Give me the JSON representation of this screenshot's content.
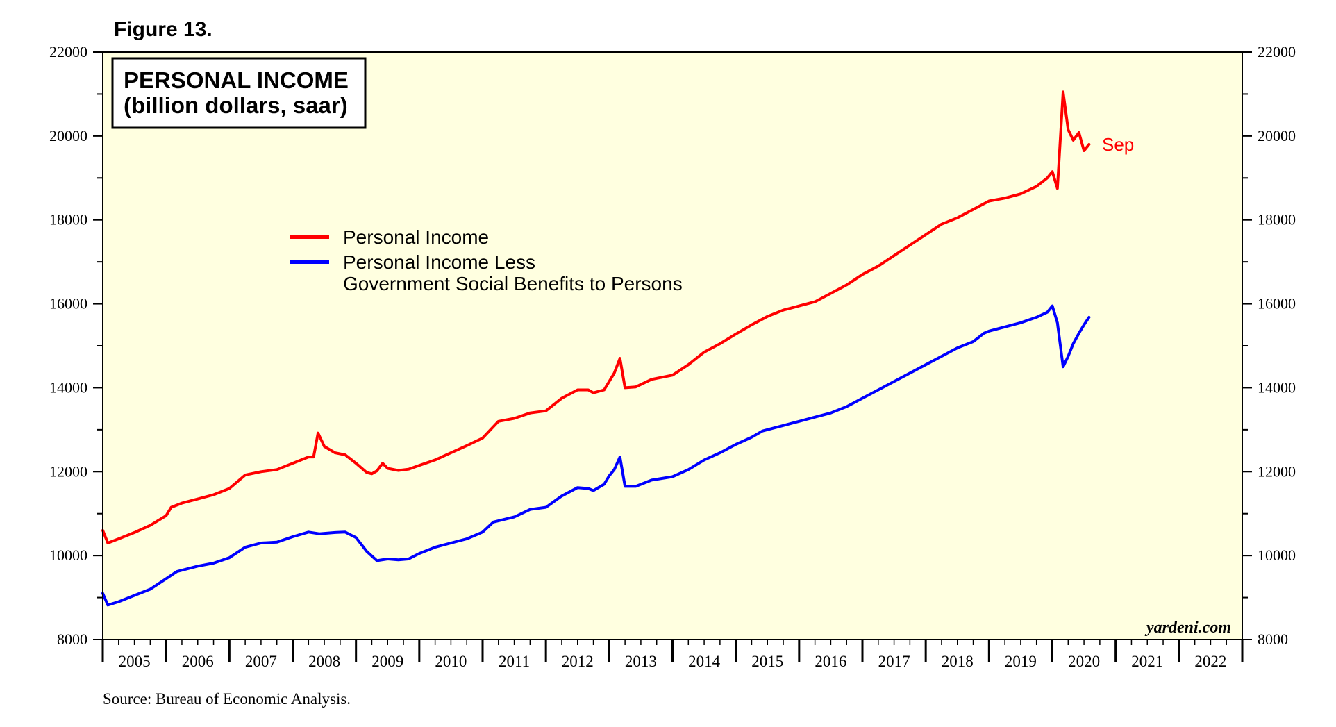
{
  "figure_label": "Figure 13.",
  "source": "Source: Bureau of Economic Analysis.",
  "watermark": "yardeni.com",
  "end_label": "Sep",
  "colors": {
    "plot_background": "#ffffe0",
    "personal_income": "#ff0000",
    "income_less_benefits": "#0000ff"
  },
  "chart_data": {
    "type": "line",
    "title": "PERSONAL INCOME",
    "subtitle": "(billion dollars, saar)",
    "xlabel": "",
    "ylabel": "",
    "ylim": [
      8000,
      22000
    ],
    "xlim": [
      2005,
      2023
    ],
    "yticks": [
      8000,
      10000,
      12000,
      14000,
      16000,
      18000,
      20000,
      22000
    ],
    "ytick_labels": [
      "8000",
      "10000",
      "12000",
      "14000",
      "16000",
      "18000",
      "20000",
      "22000"
    ],
    "year_labels": [
      "2005",
      "2006",
      "2007",
      "2008",
      "2009",
      "2010",
      "2011",
      "2012",
      "2013",
      "2014",
      "2015",
      "2016",
      "2017",
      "2018",
      "2019",
      "2020",
      "2021",
      "2022"
    ],
    "legend_position": "upper-left",
    "series": [
      {
        "name": "Personal Income",
        "color": "#ff0000",
        "points": [
          [
            2005.0,
            10600
          ],
          [
            2005.08,
            10300
          ],
          [
            2005.25,
            10400
          ],
          [
            2005.5,
            10550
          ],
          [
            2005.75,
            10720
          ],
          [
            2006.0,
            10950
          ],
          [
            2006.08,
            11150
          ],
          [
            2006.25,
            11250
          ],
          [
            2006.5,
            11350
          ],
          [
            2006.75,
            11450
          ],
          [
            2007.0,
            11600
          ],
          [
            2007.25,
            11920
          ],
          [
            2007.5,
            12000
          ],
          [
            2007.75,
            12050
          ],
          [
            2008.0,
            12200
          ],
          [
            2008.25,
            12350
          ],
          [
            2008.33,
            12350
          ],
          [
            2008.4,
            12920
          ],
          [
            2008.5,
            12600
          ],
          [
            2008.67,
            12450
          ],
          [
            2008.83,
            12400
          ],
          [
            2009.0,
            12200
          ],
          [
            2009.17,
            11980
          ],
          [
            2009.25,
            11950
          ],
          [
            2009.33,
            12020
          ],
          [
            2009.42,
            12200
          ],
          [
            2009.5,
            12080
          ],
          [
            2009.67,
            12030
          ],
          [
            2009.83,
            12060
          ],
          [
            2010.0,
            12150
          ],
          [
            2010.25,
            12280
          ],
          [
            2010.5,
            12450
          ],
          [
            2010.75,
            12620
          ],
          [
            2011.0,
            12800
          ],
          [
            2011.25,
            13200
          ],
          [
            2011.5,
            13270
          ],
          [
            2011.75,
            13400
          ],
          [
            2012.0,
            13450
          ],
          [
            2012.25,
            13750
          ],
          [
            2012.5,
            13950
          ],
          [
            2012.67,
            13950
          ],
          [
            2012.75,
            13880
          ],
          [
            2012.92,
            13950
          ],
          [
            2013.0,
            14150
          ],
          [
            2013.08,
            14350
          ],
          [
            2013.17,
            14700
          ],
          [
            2013.25,
            14000
          ],
          [
            2013.42,
            14020
          ],
          [
            2013.67,
            14200
          ],
          [
            2014.0,
            14300
          ],
          [
            2014.25,
            14550
          ],
          [
            2014.5,
            14850
          ],
          [
            2014.75,
            15050
          ],
          [
            2015.0,
            15280
          ],
          [
            2015.25,
            15500
          ],
          [
            2015.5,
            15700
          ],
          [
            2015.75,
            15850
          ],
          [
            2016.0,
            15950
          ],
          [
            2016.25,
            16050
          ],
          [
            2016.5,
            16250
          ],
          [
            2016.75,
            16450
          ],
          [
            2017.0,
            16700
          ],
          [
            2017.25,
            16900
          ],
          [
            2017.5,
            17150
          ],
          [
            2017.75,
            17400
          ],
          [
            2018.0,
            17650
          ],
          [
            2018.25,
            17900
          ],
          [
            2018.5,
            18050
          ],
          [
            2018.75,
            18250
          ],
          [
            2019.0,
            18450
          ],
          [
            2019.25,
            18520
          ],
          [
            2019.5,
            18620
          ],
          [
            2019.75,
            18800
          ],
          [
            2019.92,
            19000
          ],
          [
            2020.0,
            19150
          ],
          [
            2020.08,
            18750
          ],
          [
            2020.17,
            21050
          ],
          [
            2020.25,
            20150
          ],
          [
            2020.33,
            19900
          ],
          [
            2020.42,
            20080
          ],
          [
            2020.5,
            19650
          ],
          [
            2020.58,
            19800
          ]
        ]
      },
      {
        "name": "Personal Income Less",
        "name_line2": "Government Social Benefits to Persons",
        "color": "#0000ff",
        "points": [
          [
            2005.0,
            9100
          ],
          [
            2005.08,
            8820
          ],
          [
            2005.25,
            8900
          ],
          [
            2005.5,
            9050
          ],
          [
            2005.75,
            9200
          ],
          [
            2006.0,
            9450
          ],
          [
            2006.17,
            9620
          ],
          [
            2006.5,
            9750
          ],
          [
            2006.75,
            9820
          ],
          [
            2007.0,
            9950
          ],
          [
            2007.25,
            10200
          ],
          [
            2007.5,
            10300
          ],
          [
            2007.75,
            10320
          ],
          [
            2008.0,
            10450
          ],
          [
            2008.25,
            10560
          ],
          [
            2008.42,
            10520
          ],
          [
            2008.67,
            10550
          ],
          [
            2008.83,
            10560
          ],
          [
            2009.0,
            10430
          ],
          [
            2009.17,
            10100
          ],
          [
            2009.33,
            9880
          ],
          [
            2009.5,
            9920
          ],
          [
            2009.67,
            9900
          ],
          [
            2009.83,
            9920
          ],
          [
            2010.0,
            10050
          ],
          [
            2010.25,
            10200
          ],
          [
            2010.5,
            10300
          ],
          [
            2010.75,
            10400
          ],
          [
            2011.0,
            10560
          ],
          [
            2011.17,
            10800
          ],
          [
            2011.5,
            10920
          ],
          [
            2011.75,
            11100
          ],
          [
            2012.0,
            11150
          ],
          [
            2012.25,
            11420
          ],
          [
            2012.5,
            11620
          ],
          [
            2012.67,
            11600
          ],
          [
            2012.75,
            11550
          ],
          [
            2012.92,
            11700
          ],
          [
            2013.0,
            11900
          ],
          [
            2013.08,
            12050
          ],
          [
            2013.17,
            12350
          ],
          [
            2013.25,
            11650
          ],
          [
            2013.42,
            11650
          ],
          [
            2013.67,
            11800
          ],
          [
            2014.0,
            11880
          ],
          [
            2014.25,
            12050
          ],
          [
            2014.5,
            12280
          ],
          [
            2014.75,
            12450
          ],
          [
            2015.0,
            12650
          ],
          [
            2015.25,
            12820
          ],
          [
            2015.42,
            12970
          ],
          [
            2015.75,
            13100
          ],
          [
            2016.0,
            13200
          ],
          [
            2016.25,
            13300
          ],
          [
            2016.5,
            13400
          ],
          [
            2016.75,
            13550
          ],
          [
            2017.0,
            13750
          ],
          [
            2017.25,
            13950
          ],
          [
            2017.5,
            14150
          ],
          [
            2017.75,
            14350
          ],
          [
            2018.0,
            14550
          ],
          [
            2018.25,
            14750
          ],
          [
            2018.5,
            14950
          ],
          [
            2018.75,
            15100
          ],
          [
            2018.92,
            15300
          ],
          [
            2019.0,
            15350
          ],
          [
            2019.25,
            15450
          ],
          [
            2019.5,
            15550
          ],
          [
            2019.75,
            15680
          ],
          [
            2019.92,
            15800
          ],
          [
            2020.0,
            15950
          ],
          [
            2020.08,
            15550
          ],
          [
            2020.17,
            14500
          ],
          [
            2020.25,
            14750
          ],
          [
            2020.33,
            15050
          ],
          [
            2020.42,
            15300
          ],
          [
            2020.5,
            15500
          ],
          [
            2020.58,
            15680
          ]
        ]
      }
    ]
  }
}
